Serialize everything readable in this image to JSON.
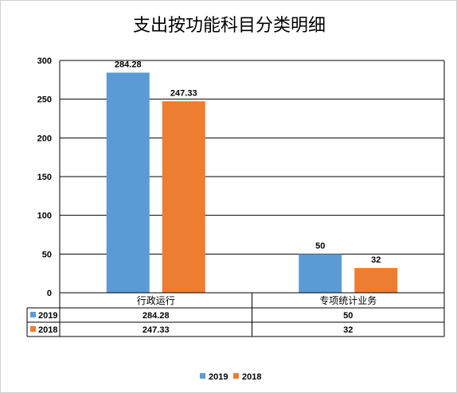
{
  "chart_data": {
    "type": "bar",
    "title": "支出按功能科目分类明细",
    "categories": [
      "行政运行",
      "专项统计业务"
    ],
    "series": [
      {
        "name": "2019",
        "values": [
          284.28,
          50
        ],
        "labels": [
          "284.28",
          "50"
        ],
        "color": "#5B9BD5"
      },
      {
        "name": "2018",
        "values": [
          247.33,
          32
        ],
        "labels": [
          "247.33",
          "32"
        ],
        "color": "#ED7D31"
      }
    ],
    "ylim": [
      0,
      300
    ],
    "yticks": [
      "0",
      "50",
      "100",
      "150",
      "200",
      "250",
      "300"
    ],
    "grid": true,
    "data_table": true,
    "legend": "bottom"
  }
}
